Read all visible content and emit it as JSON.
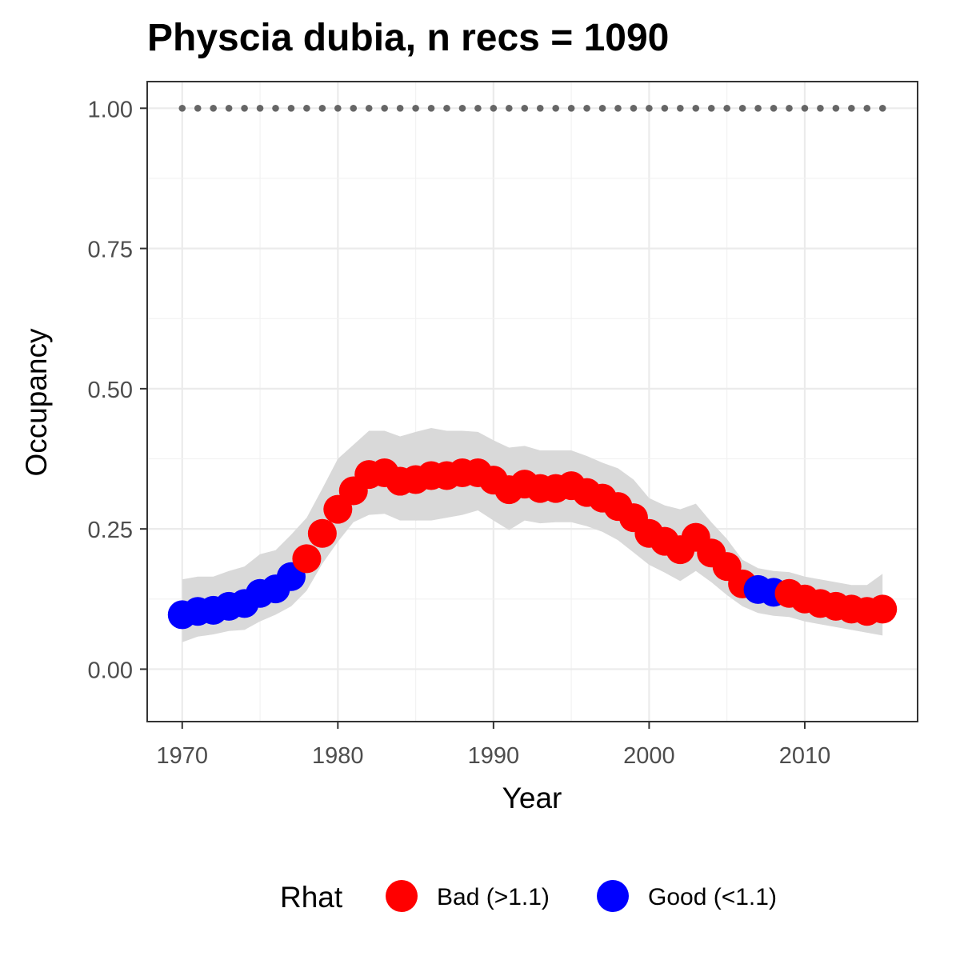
{
  "chart_data": {
    "type": "scatter",
    "title": "Physcia dubia, n recs = 1090",
    "xlabel": "Year",
    "ylabel": "Occupancy",
    "xlim": [
      1967.9,
      1017.0
    ],
    "ylim": [
      -0.0935,
      1.0475
    ],
    "xticks": [
      1970,
      1980,
      1990,
      2000,
      2010
    ],
    "xtick_labels": [
      "1970",
      "1980",
      "1990",
      "2000",
      "2010"
    ],
    "yticks": [
      0,
      0.25,
      0.5,
      0.75,
      1
    ],
    "ytick_labels": [
      "0.00",
      "0.25",
      "0.50",
      "0.75",
      "1.00"
    ],
    "grid": true,
    "legend": {
      "title": "Rhat",
      "position": "bottom",
      "entries": [
        {
          "label": "Bad (>1.1)",
          "color": "#ff0000"
        },
        {
          "label": "Good (<1.1)",
          "color": "#0000ff"
        }
      ]
    },
    "reference_line": {
      "y": 1.0,
      "style": "dotted",
      "color": "#666666"
    },
    "x": [
      1970,
      1971,
      1972,
      1973,
      1974,
      1975,
      1976,
      1977,
      1978,
      1979,
      1980,
      1981,
      1982,
      1983,
      1984,
      1985,
      1986,
      1987,
      1988,
      1989,
      1990,
      1991,
      1992,
      1993,
      1994,
      1995,
      1996,
      1997,
      1998,
      1999,
      2000,
      2001,
      2002,
      2003,
      2004,
      2005,
      2006,
      2007,
      2008,
      2009,
      2010,
      2011,
      2012,
      2013,
      2014,
      2015
    ],
    "occupancy": [
      0.097,
      0.103,
      0.105,
      0.112,
      0.117,
      0.135,
      0.143,
      0.165,
      0.197,
      0.242,
      0.285,
      0.318,
      0.347,
      0.35,
      0.335,
      0.338,
      0.345,
      0.345,
      0.35,
      0.35,
      0.337,
      0.32,
      0.33,
      0.322,
      0.322,
      0.327,
      0.315,
      0.305,
      0.29,
      0.27,
      0.242,
      0.228,
      0.213,
      0.235,
      0.207,
      0.183,
      0.152,
      0.142,
      0.137,
      0.135,
      0.125,
      0.117,
      0.112,
      0.107,
      0.103,
      0.107
    ],
    "rhat": [
      "Good",
      "Good",
      "Good",
      "Good",
      "Good",
      "Good",
      "Good",
      "Good",
      "Bad",
      "Bad",
      "Bad",
      "Bad",
      "Bad",
      "Bad",
      "Bad",
      "Bad",
      "Bad",
      "Bad",
      "Bad",
      "Bad",
      "Bad",
      "Bad",
      "Bad",
      "Bad",
      "Bad",
      "Bad",
      "Bad",
      "Bad",
      "Bad",
      "Bad",
      "Bad",
      "Bad",
      "Bad",
      "Bad",
      "Bad",
      "Bad",
      "Bad",
      "Good",
      "Good",
      "Bad",
      "Bad",
      "Bad",
      "Bad",
      "Bad",
      "Bad",
      "Bad"
    ],
    "ci_lower": [
      0.048,
      0.058,
      0.062,
      0.068,
      0.07,
      0.085,
      0.097,
      0.112,
      0.14,
      0.188,
      0.227,
      0.262,
      0.275,
      0.277,
      0.265,
      0.265,
      0.265,
      0.27,
      0.275,
      0.283,
      0.265,
      0.248,
      0.265,
      0.26,
      0.262,
      0.262,
      0.255,
      0.245,
      0.23,
      0.208,
      0.186,
      0.172,
      0.157,
      0.175,
      0.155,
      0.132,
      0.112,
      0.1,
      0.095,
      0.093,
      0.085,
      0.08,
      0.075,
      0.07,
      0.065,
      0.06
    ],
    "ci_upper": [
      0.16,
      0.165,
      0.165,
      0.175,
      0.183,
      0.205,
      0.212,
      0.24,
      0.27,
      0.322,
      0.375,
      0.4,
      0.425,
      0.425,
      0.415,
      0.423,
      0.43,
      0.425,
      0.425,
      0.423,
      0.408,
      0.395,
      0.398,
      0.39,
      0.39,
      0.39,
      0.38,
      0.368,
      0.358,
      0.338,
      0.305,
      0.292,
      0.285,
      0.295,
      0.262,
      0.232,
      0.195,
      0.18,
      0.175,
      0.173,
      0.165,
      0.16,
      0.155,
      0.15,
      0.15,
      0.17
    ]
  }
}
